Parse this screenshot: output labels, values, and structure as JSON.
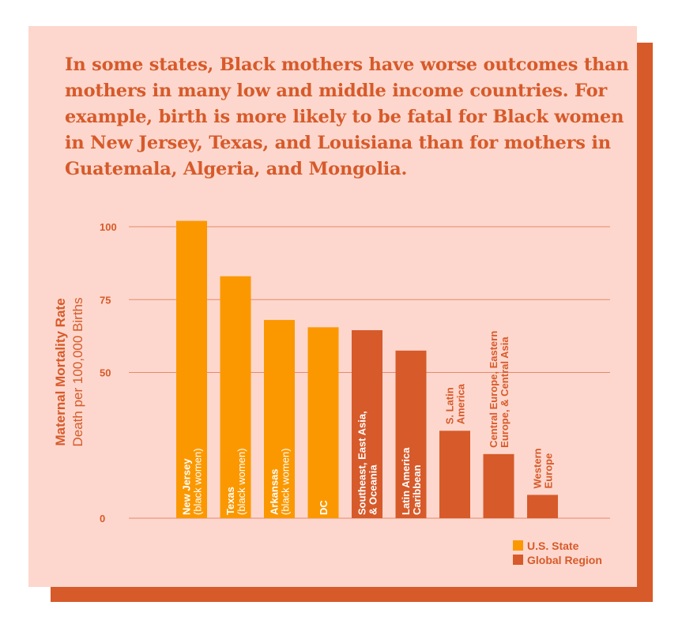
{
  "headline": "In some states, Black mothers have worse outcomes than mothers in many low and middle income countries. For example, birth is more likely to be fatal for Black women in New Jersey, Texas, and Louisiana than for mothers in Guatemala, Algeria, and Mongolia.",
  "colors": {
    "background": "#fdd7cd",
    "accent": "#d75a2a",
    "us_state": "#fb9800",
    "global_region": "#d75a2a",
    "grid": "#e58a6c"
  },
  "chart_data": {
    "type": "bar",
    "title": "",
    "ylabel": "Maternal Mortality Rate",
    "ylabel_sub": "Death per 100,000 Births",
    "xlabel": "",
    "ylim": [
      0,
      100
    ],
    "yticks": [
      0,
      50,
      75,
      100
    ],
    "grid": true,
    "legend_position": "bottom-right",
    "legend": [
      {
        "key": "us_state",
        "label": "U.S. State"
      },
      {
        "key": "global_region",
        "label": "Global Region"
      }
    ],
    "bars": [
      {
        "label_lines": [
          "New Jersey",
          "(black women)"
        ],
        "value": 102,
        "group": "us_state"
      },
      {
        "label_lines": [
          "Texas",
          "(black women)"
        ],
        "value": 83,
        "group": "us_state"
      },
      {
        "label_lines": [
          "Arkansas",
          "(black women)"
        ],
        "value": 68,
        "group": "us_state"
      },
      {
        "label_lines": [
          "DC"
        ],
        "value": 65.5,
        "group": "us_state"
      },
      {
        "label_lines": [
          "Southeast, East Asia,",
          "& Oceania"
        ],
        "value": 64.5,
        "group": "global_region"
      },
      {
        "label_lines": [
          "Latin America",
          "Caribbean"
        ],
        "value": 57.5,
        "group": "global_region"
      },
      {
        "label_lines": [
          "S. Latin",
          "America"
        ],
        "value": 30,
        "group": "global_region"
      },
      {
        "label_lines": [
          "Central Europe, Eastern",
          "Europe, & Central Asia"
        ],
        "value": 22,
        "group": "global_region"
      },
      {
        "label_lines": [
          "Western",
          "Europe"
        ],
        "value": 8,
        "group": "global_region"
      }
    ]
  }
}
